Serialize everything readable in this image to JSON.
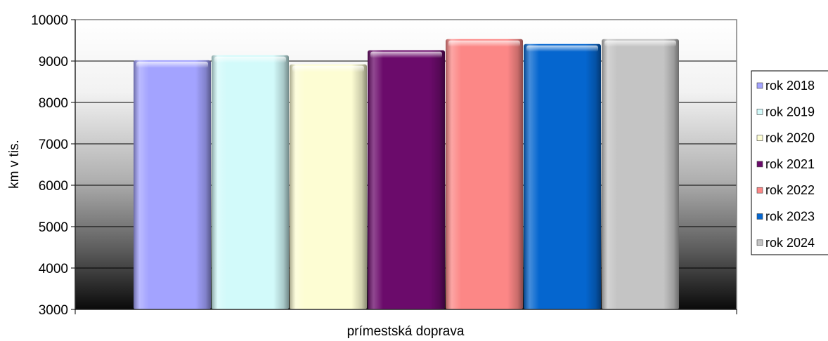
{
  "chart_data": {
    "type": "bar",
    "categories": [
      "prímestská doprava"
    ],
    "xlabel": "prímestská doprava",
    "ylabel": "km v tis.",
    "ylim": [
      3000,
      10000
    ],
    "yticks": [
      3000,
      4000,
      5000,
      6000,
      7000,
      8000,
      9000,
      10000
    ],
    "grid": true,
    "legend_position": "right",
    "series": [
      {
        "name": "rok 2018",
        "values": [
          9020
        ],
        "color": "#a3a3ff"
      },
      {
        "name": "rok 2019",
        "values": [
          9140
        ],
        "color": "#d2fafa"
      },
      {
        "name": "rok 2020",
        "values": [
          8920
        ],
        "color": "#fdfdd3"
      },
      {
        "name": "rok 2021",
        "values": [
          9260
        ],
        "color": "#6b0b6b"
      },
      {
        "name": "rok 2022",
        "values": [
          9530
        ],
        "color": "#fc8786"
      },
      {
        "name": "rok 2023",
        "values": [
          9410
        ],
        "color": "#0566cf"
      },
      {
        "name": "rok 2024",
        "values": [
          9530
        ],
        "color": "#c4c4c4"
      }
    ]
  }
}
